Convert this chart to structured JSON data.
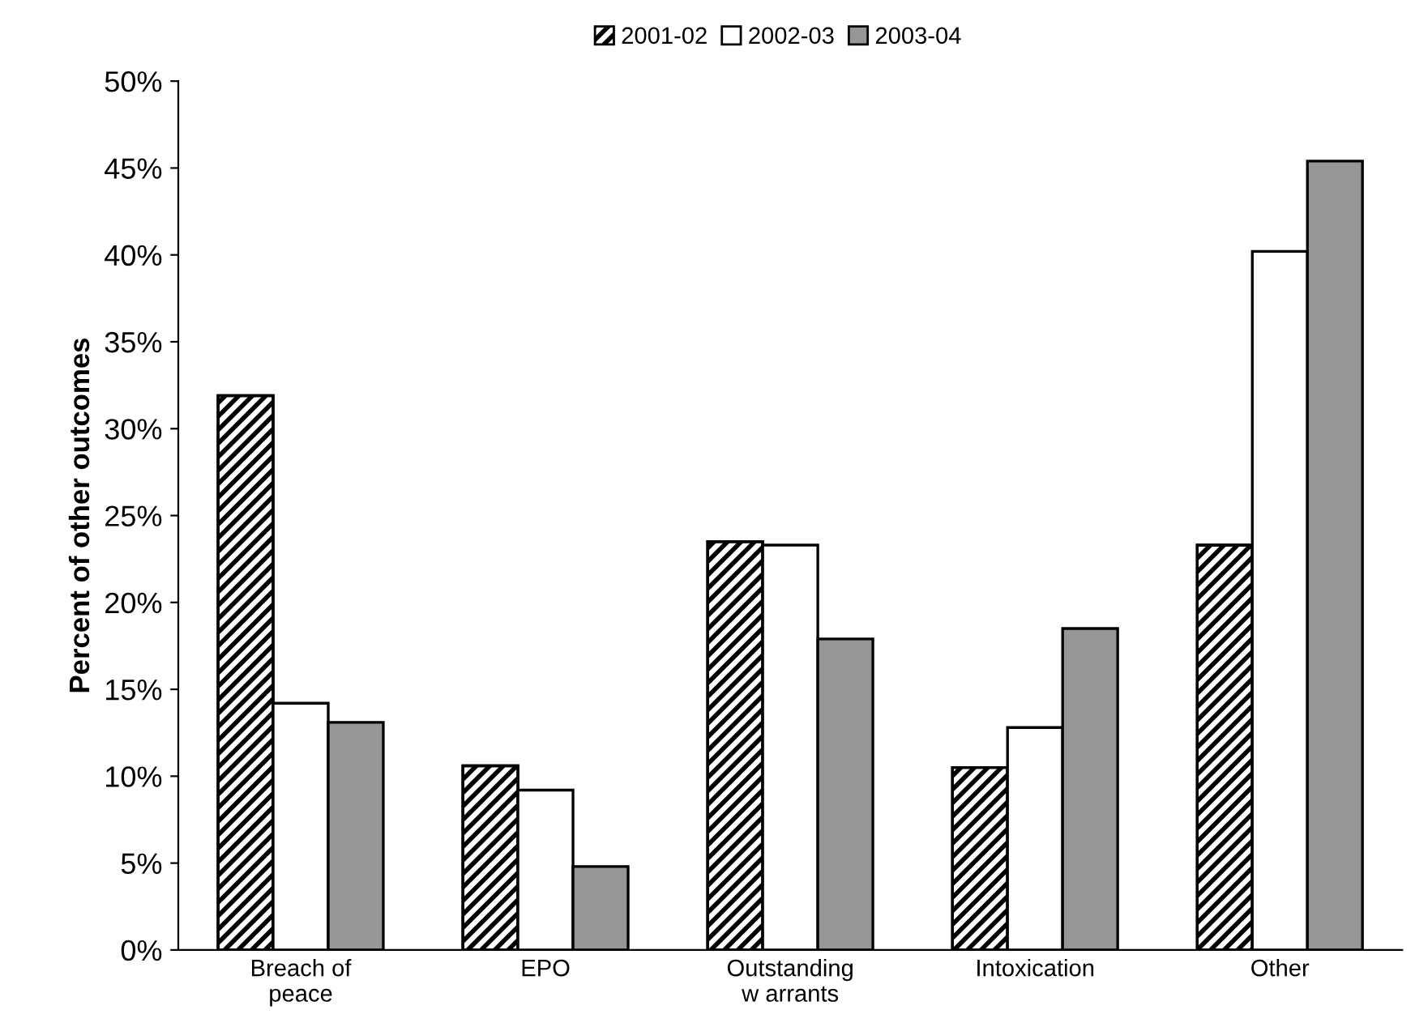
{
  "chart_data": {
    "type": "bar",
    "categories": [
      "Breach of\npeace",
      "EPO",
      "Outstanding\nw arrants",
      "Intoxication",
      "Other"
    ],
    "ylabel": "Percent of other outcomes",
    "series": [
      {
        "name": "2001-02",
        "color": "#000000",
        "values": [
          31.9,
          10.6,
          23.5,
          10.5,
          23.3
        ]
      },
      {
        "name": "2002-03",
        "color": "#ffffff",
        "values": [
          14.2,
          9.2,
          23.3,
          12.8,
          40.2
        ]
      },
      {
        "name": "2003-04",
        "color": "#969696",
        "values": [
          13.1,
          4.8,
          17.9,
          18.5,
          45.4
        ]
      }
    ],
    "ylim": [
      0,
      50
    ],
    "yticks": [
      {
        "value": 0,
        "label": "0%"
      },
      {
        "value": 5,
        "label": "5%"
      },
      {
        "value": 10,
        "label": "10%"
      },
      {
        "value": 15,
        "label": "15%"
      },
      {
        "value": 20,
        "label": "20%"
      },
      {
        "value": 25,
        "label": "25%"
      },
      {
        "value": 30,
        "label": "30%"
      },
      {
        "value": 35,
        "label": "35%"
      },
      {
        "value": 40,
        "label": "40%"
      },
      {
        "value": 45,
        "label": "45%"
      },
      {
        "value": 50,
        "label": "50%"
      }
    ],
    "grid": false,
    "legend": "top"
  }
}
